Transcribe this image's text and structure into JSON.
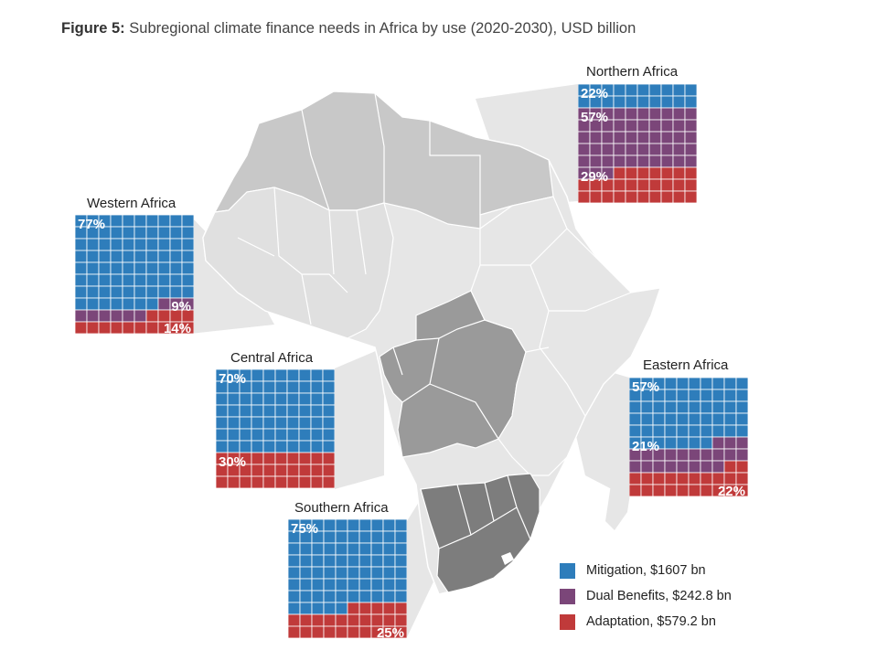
{
  "title": {
    "bold": "Figure 5:",
    "text": " Subregional climate finance needs in Africa by use (2020-2030), USD billion"
  },
  "colors": {
    "mitigation": "#2e7dbb",
    "dual": "#7b4679",
    "adaptation": "#c03a3a",
    "map_light": "#e6e6e6",
    "map_mid": "#c8c8c8",
    "map_dark": "#9a9a9a",
    "map_darker": "#7d7d7d"
  },
  "legend": [
    {
      "key": "mitigation",
      "label": "Mitigation, $1607 bn"
    },
    {
      "key": "dual",
      "label": "Dual Benefits, $242.8 bn"
    },
    {
      "key": "adaptation",
      "label": "Adaptation, $579.2 bn"
    }
  ],
  "chart_data": {
    "type": "waffle",
    "units": "percent of regional need",
    "regions": [
      {
        "name": "Northern Africa",
        "mitigation": 22,
        "dual": 57,
        "adaptation": 29,
        "labels": {
          "mitigation": "22%",
          "dual": "57%",
          "adaptation": "29%"
        }
      },
      {
        "name": "Western Africa",
        "mitigation": 77,
        "dual": 9,
        "adaptation": 14,
        "labels": {
          "mitigation": "77%",
          "dual": "9%",
          "adaptation": "14%"
        }
      },
      {
        "name": "Central Africa",
        "mitigation": 70,
        "dual": 0,
        "adaptation": 30,
        "labels": {
          "mitigation": "70%",
          "adaptation": "30%"
        }
      },
      {
        "name": "Eastern Africa",
        "mitigation": 57,
        "dual": 21,
        "adaptation": 22,
        "labels": {
          "mitigation": "57%",
          "dual": "21%",
          "adaptation": "22%"
        }
      },
      {
        "name": "Southern Africa",
        "mitigation": 75,
        "dual": 0,
        "adaptation": 25,
        "labels": {
          "mitigation": "75%",
          "adaptation": "25%"
        }
      }
    ]
  }
}
